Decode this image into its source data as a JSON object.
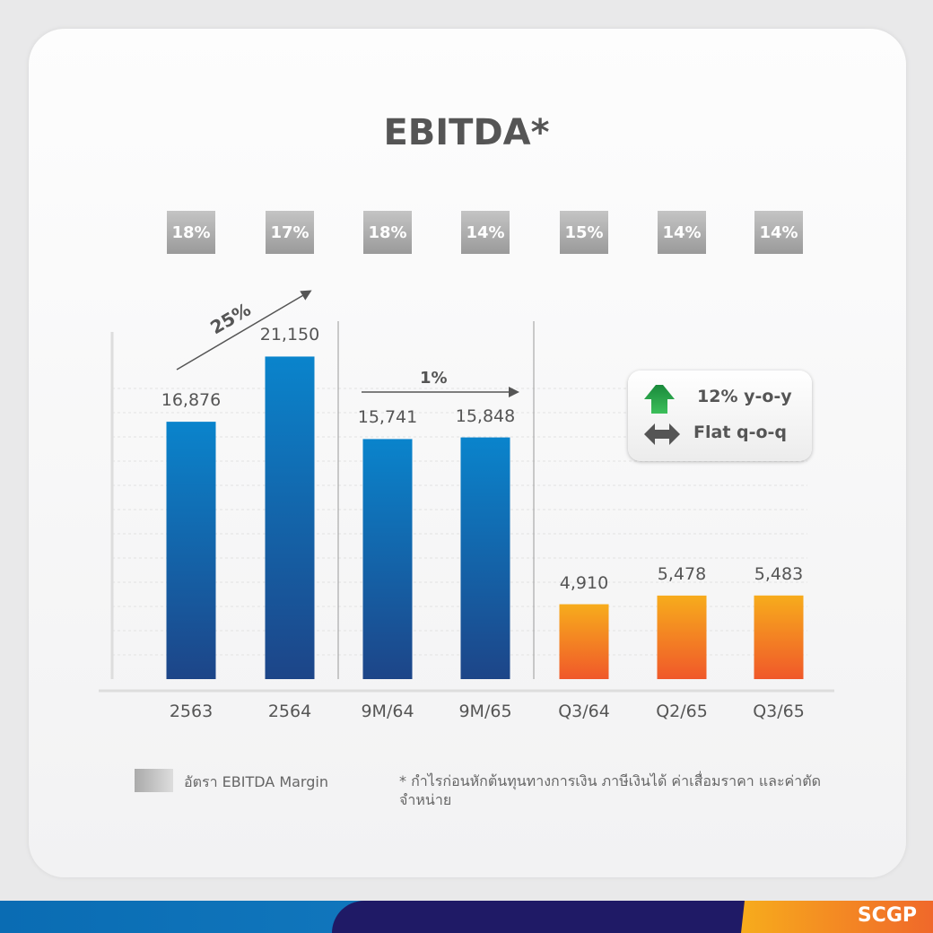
{
  "chart_data": {
    "type": "bar",
    "title": "EBITDA*",
    "categories": [
      "2563",
      "2564",
      "9M/64",
      "9M/65",
      "Q3/64",
      "Q2/65",
      "Q3/65"
    ],
    "values": [
      16876,
      21150,
      15741,
      15848,
      4910,
      5478,
      5483
    ],
    "value_labels": [
      "16,876",
      "21,150",
      "15,741",
      "15,848",
      "4,910",
      "5,478",
      "5,483"
    ],
    "margins": [
      "18%",
      "17%",
      "18%",
      "14%",
      "15%",
      "14%",
      "14%"
    ],
    "bar_colors": [
      "blue",
      "blue",
      "blue",
      "blue",
      "orange",
      "orange",
      "orange"
    ],
    "colors": {
      "blue_top": "#0a84cc",
      "blue_bottom": "#1d4588",
      "orange_top": "#f7ac1c",
      "orange_bottom": "#f0582a"
    },
    "growth_annotations": [
      {
        "from": "2563",
        "to": "2564",
        "label": "25%"
      },
      {
        "from": "9M/64",
        "to": "9M/65",
        "label": "1%"
      }
    ],
    "legend": {
      "label": "อัตรา EBITDA Margin"
    },
    "grid": true
  },
  "info_box": {
    "yoy": "12% y-o-y",
    "qoq": "Flat q-o-q",
    "yoy_icon": "green-up-arrow-icon",
    "qoq_icon": "gray-double-arrow-icon"
  },
  "footnote": "* กำไรก่อนหักต้นทุนทางการเงิน ภาษีเงินได้ ค่าเสื่อมราคา และค่าตัดจำหน่าย",
  "footer": {
    "logo": "SCGP"
  }
}
